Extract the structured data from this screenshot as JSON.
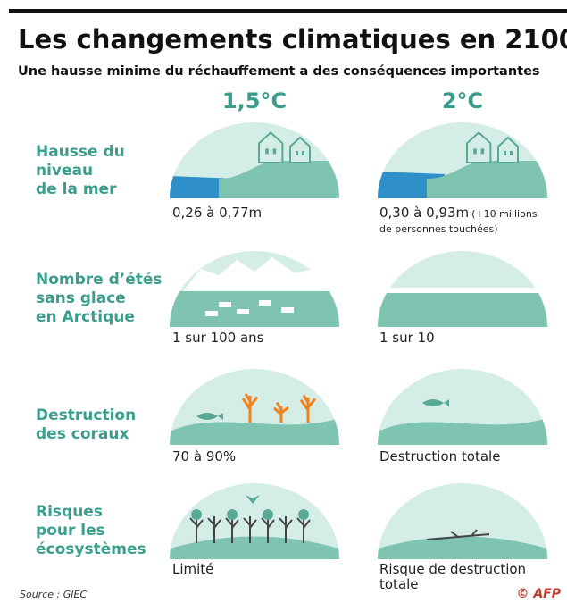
{
  "title": "Les changements climatiques en 2100",
  "subtitle": "Une hausse minime du réchauffement a des conséquences importantes",
  "columns": [
    "1,5°C",
    "2°C"
  ],
  "rows": [
    {
      "label": [
        "Hausse du",
        "niveau",
        "de la mer"
      ],
      "cells": [
        {
          "lines": [
            "0,26 à 0,77m"
          ]
        },
        {
          "lines": [
            "0,30 à 0,93m"
          ],
          "note": [
            "(+10 millions",
            "de personnes touchées)"
          ]
        }
      ]
    },
    {
      "label": [
        "Nombre d’étés",
        "sans glace",
        "en Arctique"
      ],
      "cells": [
        {
          "lines": [
            "1 sur 100 ans"
          ]
        },
        {
          "lines": [
            "1 sur 10"
          ]
        }
      ]
    },
    {
      "label": [
        "Destruction",
        "des coraux"
      ],
      "cells": [
        {
          "lines": [
            "70 à 90%"
          ]
        },
        {
          "lines": [
            "Destruction totale"
          ]
        }
      ]
    },
    {
      "label": [
        "Risques",
        "pour les",
        "écosystèmes"
      ],
      "cells": [
        {
          "lines": [
            "Limité"
          ]
        },
        {
          "lines": [
            "Risque de destruction",
            "totale"
          ]
        }
      ]
    }
  ],
  "source": "Source : GIEC",
  "credit": "© AFP"
}
